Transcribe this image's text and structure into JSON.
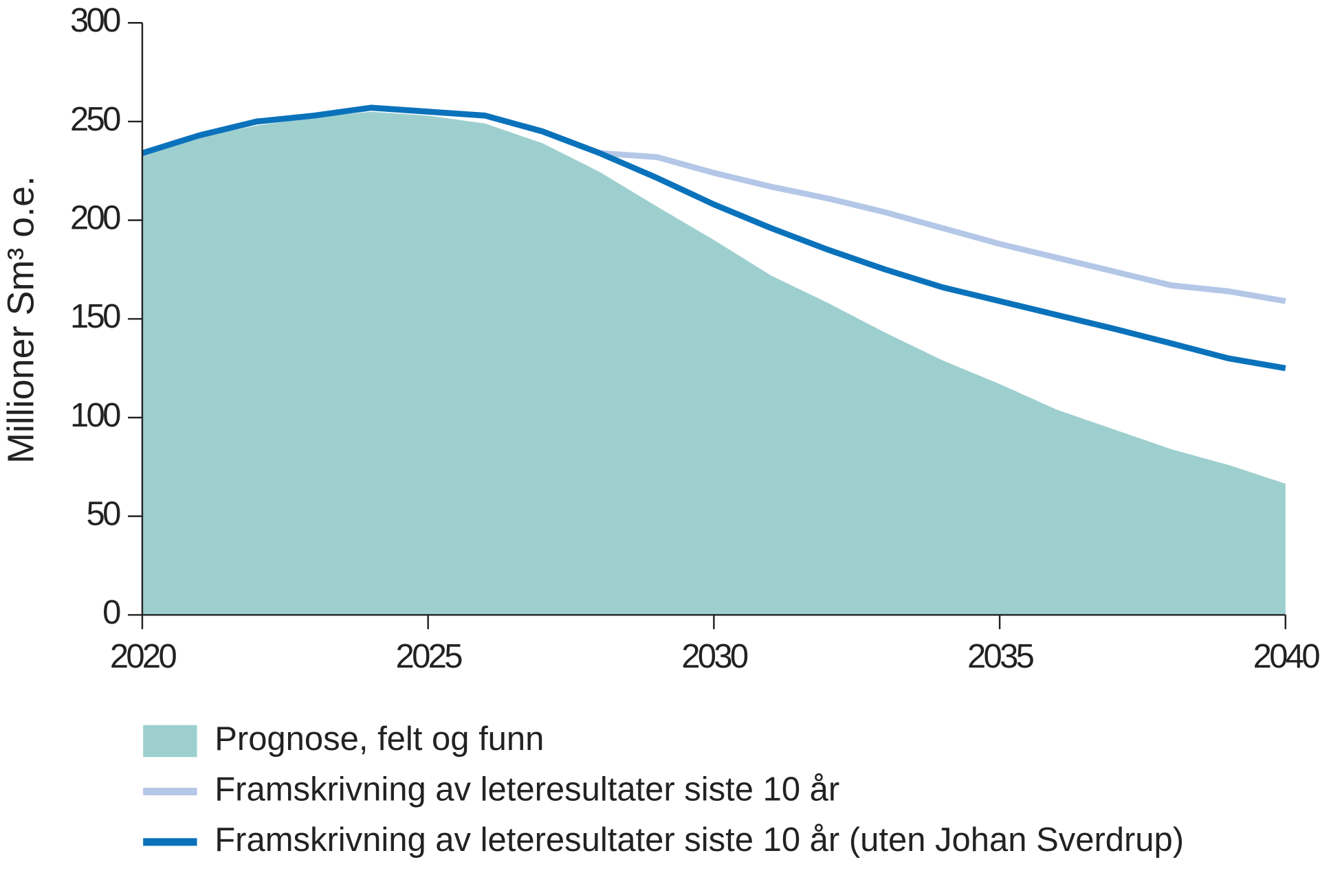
{
  "chart_data": {
    "type": "line",
    "y_label": "Millioner Sm³ o.e.",
    "x": [
      2020,
      2021,
      2022,
      2023,
      2024,
      2025,
      2026,
      2027,
      2028,
      2029,
      2030,
      2031,
      2032,
      2033,
      2034,
      2035,
      2036,
      2037,
      2038,
      2039,
      2040
    ],
    "xlim": [
      2020,
      2040
    ],
    "xticks": [
      2020,
      2025,
      2030,
      2035,
      2040
    ],
    "ylim": [
      0,
      300
    ],
    "yticks": [
      0,
      50,
      100,
      150,
      200,
      250,
      300
    ],
    "series": [
      {
        "name": "Prognose, felt og funn",
        "type": "area",
        "color": "#9ecfcf",
        "values": [
          233,
          242,
          248,
          252,
          255,
          253,
          249,
          239,
          224.5,
          207,
          190,
          172,
          158,
          143,
          129,
          117,
          104,
          94,
          84,
          76,
          66.5
        ]
      },
      {
        "name": "Framskrivning av leteresultater siste 10 år",
        "type": "line",
        "color": "#b4c7e7",
        "values": [
          234,
          243,
          250,
          253,
          257,
          255,
          253,
          245,
          234,
          232,
          224,
          217,
          211,
          204,
          196,
          188,
          181,
          174,
          167,
          164,
          159
        ]
      },
      {
        "name": "Framskrivning av leteresultater siste 10 år (uten Johan Sverdrup)",
        "type": "line",
        "color": "#0a72bb",
        "values": [
          234,
          243,
          250,
          253,
          257,
          255,
          253,
          245,
          234,
          221.5,
          208,
          196,
          185,
          175,
          166,
          159,
          152,
          145,
          137.6,
          130,
          125
        ]
      }
    ]
  }
}
